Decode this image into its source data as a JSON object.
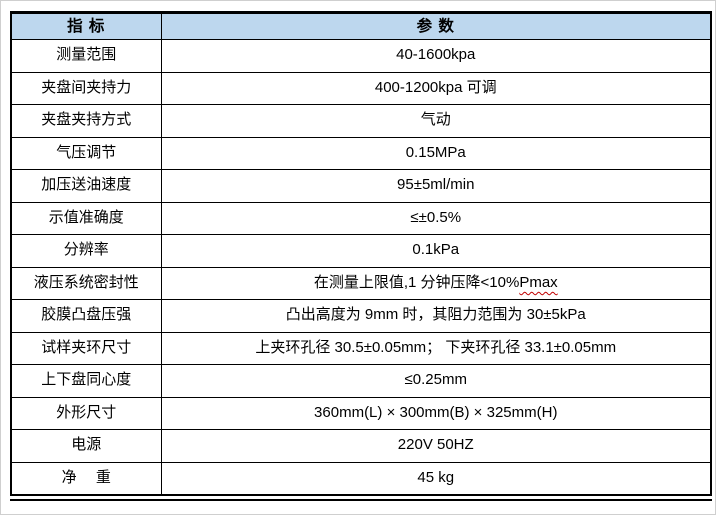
{
  "table": {
    "headers": [
      {
        "label": "指 标"
      },
      {
        "label": "参 数"
      }
    ],
    "rows": [
      {
        "label": "测量范围",
        "value": "40-1600kpa"
      },
      {
        "label": "夹盘间夹持力",
        "value": "400-1200kpa 可调"
      },
      {
        "label": "夹盘夹持方式",
        "value": "气动"
      },
      {
        "label": "气压调节",
        "value": "0.15MPa"
      },
      {
        "label": "加压送油速度",
        "value": "95±5ml/min"
      },
      {
        "label": "示值准确度",
        "value": "≤±0.5%"
      },
      {
        "label": "分辨率",
        "value": "0.1kPa"
      },
      {
        "label": "液压系统密封性",
        "value": "在测量上限值,1 分钟压降<10%",
        "value_wavy": "Pmax"
      },
      {
        "label": "胶膜凸盘压强",
        "value": "凸出高度为 9mm 时，其阻力范围为 30±5kPa"
      },
      {
        "label": "试样夹环尺寸",
        "value": "上夹环孔径 30.5±0.05mm； 下夹环孔径 33.1±0.05mm"
      },
      {
        "label": "上下盘同心度",
        "value": "≤0.25mm"
      },
      {
        "label": "外形尺寸",
        "value": "360mm(L) × 300mm(B) × 325mm(H)"
      },
      {
        "label": "电源",
        "value": "220V 50HZ"
      },
      {
        "label": "净　 重",
        "value": "45 kg"
      }
    ],
    "colors": {
      "header_bg": "#BDD7EE",
      "border": "#000000",
      "spellcheck_underline": "#C00000"
    }
  }
}
